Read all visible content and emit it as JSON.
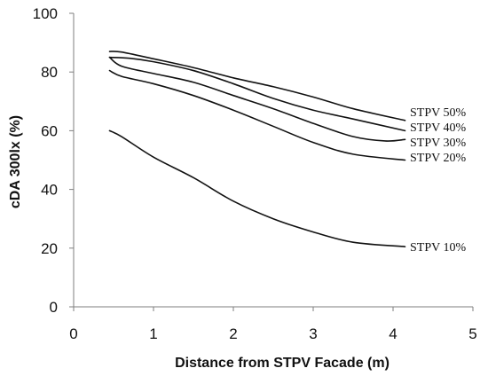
{
  "chart_data": {
    "type": "line",
    "xlabel": "Distance from STPV Facade (m)",
    "ylabel": "cDA 300lx (%)",
    "xlim": [
      0,
      5
    ],
    "ylim": [
      0,
      100
    ],
    "xticks": [
      "0",
      "1",
      "2",
      "3",
      "4",
      "5"
    ],
    "yticks": [
      "0",
      "20",
      "40",
      "60",
      "80",
      "100"
    ],
    "grid": false,
    "legend": "inline labels at right end of each line",
    "line_color": "#111111",
    "series": [
      {
        "name": "STPV 50%",
        "x": [
          0.45,
          0.6,
          1.0,
          1.5,
          2.0,
          2.5,
          3.0,
          3.5,
          4.15
        ],
        "values": [
          87,
          86.8,
          84.5,
          81.5,
          78,
          75,
          71.5,
          67.5,
          63.5
        ]
      },
      {
        "name": "STPV 40%",
        "x": [
          0.45,
          0.7,
          1.0,
          1.5,
          2.0,
          2.5,
          3.0,
          3.5,
          4.15
        ],
        "values": [
          85,
          84.7,
          83.5,
          80.5,
          76,
          71,
          67,
          64,
          60
        ]
      },
      {
        "name": "STPV 30%",
        "x": [
          0.45,
          0.6,
          1.0,
          1.5,
          2.0,
          2.5,
          3.0,
          3.5,
          3.9,
          4.15
        ],
        "values": [
          85,
          82,
          79.5,
          76.5,
          72,
          67.5,
          62.5,
          58,
          56.5,
          57
        ]
      },
      {
        "name": "STPV 20%",
        "x": [
          0.45,
          0.6,
          1.0,
          1.5,
          2.0,
          2.5,
          3.0,
          3.5,
          4.15
        ],
        "values": [
          80.5,
          78.5,
          76,
          72,
          67,
          61.5,
          56,
          52,
          50
        ]
      },
      {
        "name": "STPV 10%",
        "x": [
          0.45,
          0.6,
          1.0,
          1.5,
          2.0,
          2.5,
          3.0,
          3.5,
          4.15
        ],
        "values": [
          60,
          58,
          51,
          44,
          36,
          30,
          25.5,
          22,
          20.5
        ]
      }
    ]
  }
}
